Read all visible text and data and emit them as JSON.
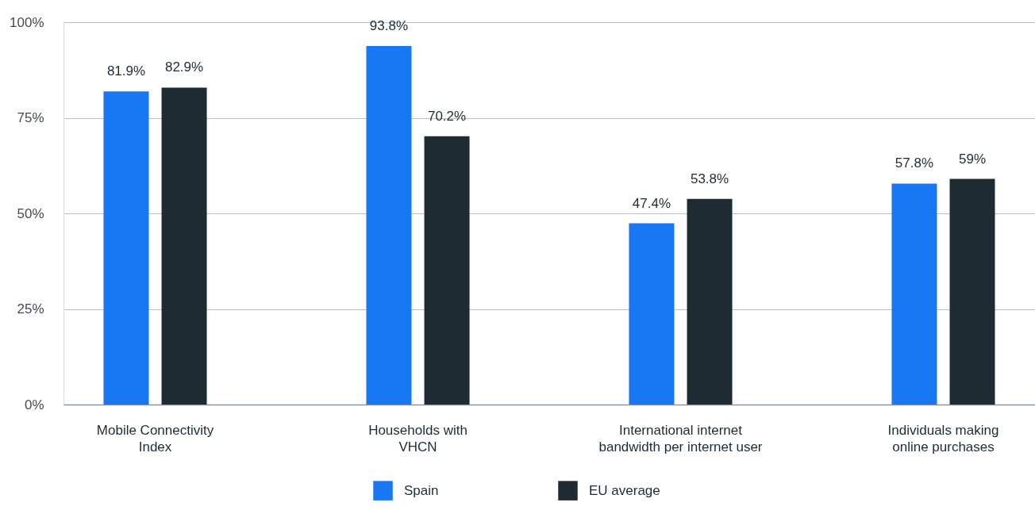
{
  "chart_data": {
    "type": "bar",
    "categories": [
      "Mobile Connectivity Index",
      "Households with VHCN",
      "International internet bandwidth per internet user",
      "Individuals making online purchases"
    ],
    "series": [
      {
        "name": "Spain",
        "color": "#1877f2",
        "values": [
          81.9,
          93.8,
          47.4,
          57.8
        ],
        "value_labels": [
          "81.9%",
          "93.8%",
          "47.4%",
          "57.8%"
        ]
      },
      {
        "name": "EU average",
        "color": "#1f2b33",
        "values": [
          82.9,
          70.2,
          53.8,
          59
        ],
        "value_labels": [
          "82.9%",
          "70.2%",
          "53.8%",
          "59%"
        ]
      }
    ],
    "ylim": [
      0,
      100
    ],
    "yticks": [
      {
        "value": 0,
        "label": "0%"
      },
      {
        "value": 25,
        "label": "25%"
      },
      {
        "value": 50,
        "label": "50%"
      },
      {
        "value": 75,
        "label": "75%"
      },
      {
        "value": 100,
        "label": "100%"
      }
    ],
    "grid": "y",
    "legend": "bottom"
  }
}
